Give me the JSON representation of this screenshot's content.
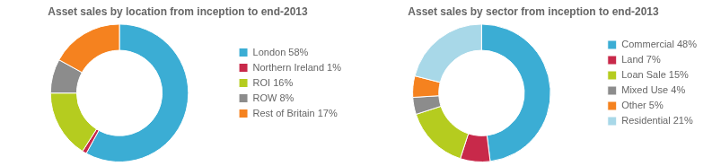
{
  "chart_data": [
    {
      "type": "doughnut",
      "title": "Asset sales by location from inception to end-2013",
      "categories": [
        "London 58%",
        "Northern Ireland 1%",
        "ROI 16%",
        "ROW 8%",
        "Rest of Britain 17%"
      ],
      "values": [
        58,
        1,
        16,
        8,
        17
      ],
      "colors": [
        "#3badd4",
        "#c8294a",
        "#b5cc1f",
        "#8c8c8c",
        "#f5821f"
      ],
      "legend": "right"
    },
    {
      "type": "doughnut",
      "title": "Asset sales by sector from inception to end-2013",
      "categories": [
        "Commercial 48%",
        "Land 7%",
        "Loan Sale 15%",
        "Mixed Use 4%",
        "Other 5%",
        "Residential 21%"
      ],
      "values": [
        48,
        7,
        15,
        4,
        5,
        21
      ],
      "colors": [
        "#3badd4",
        "#c8294a",
        "#b5cc1f",
        "#8c8c8c",
        "#f5821f",
        "#a8d8e8"
      ],
      "legend": "right"
    }
  ]
}
